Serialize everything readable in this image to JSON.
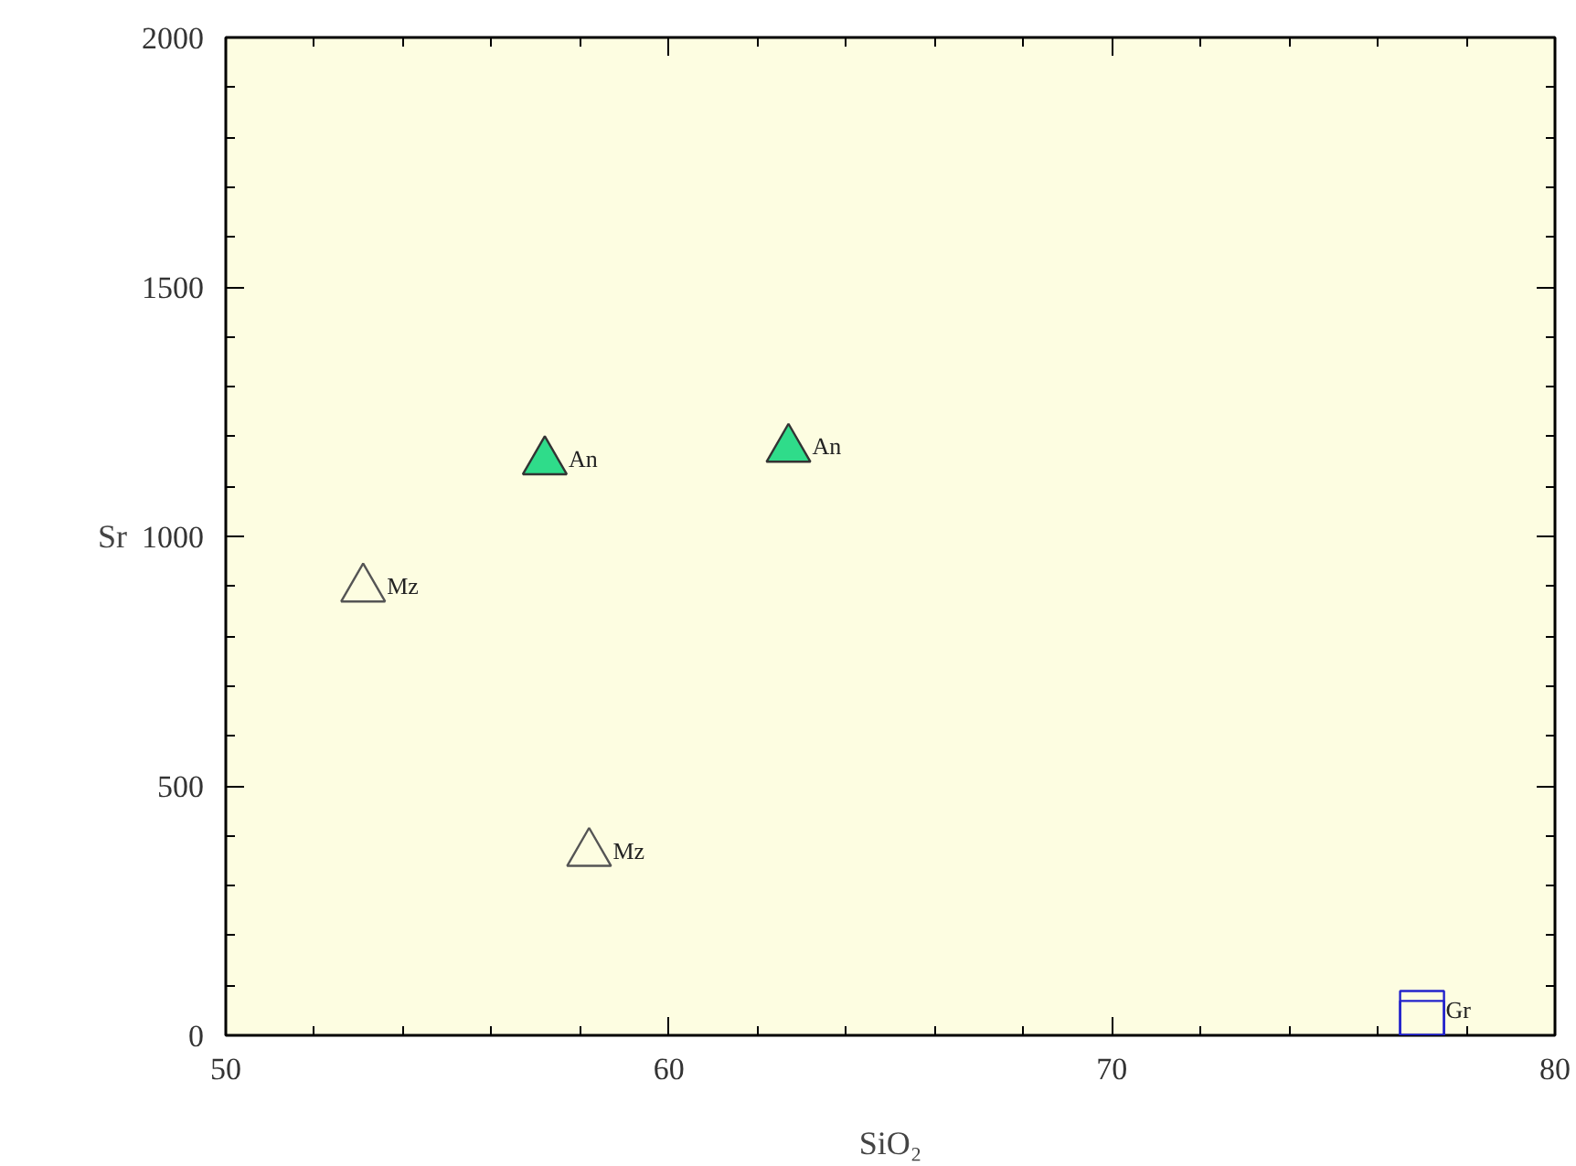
{
  "chart_data": {
    "type": "scatter",
    "xlabel": "SiO₂",
    "ylabel": "Sr",
    "xlim": [
      50,
      80
    ],
    "xticks": [
      50,
      60,
      70,
      80
    ],
    "ylim": [
      0,
      2000
    ],
    "yticks": [
      0,
      500,
      1000,
      1500,
      2000
    ],
    "grid": false,
    "series": [
      {
        "color": "#2fdc8a",
        "marker": "triangle",
        "x": [
          57.2,
          62.7
        ],
        "values": [
          1150,
          1175
        ],
        "value_labels": [
          "An",
          "An"
        ]
      },
      {
        "color": "#555555",
        "marker": "triangle_open",
        "x": [
          53.1,
          58.2
        ],
        "values": [
          895,
          365
        ],
        "value_labels": [
          "Mz",
          "Mz"
        ]
      },
      {
        "color": "#2222cc",
        "marker": "square_open",
        "x": [
          77.0,
          77.0
        ],
        "values": [
          45,
          25
        ],
        "value_labels": [
          "Gr",
          null
        ]
      }
    ]
  }
}
